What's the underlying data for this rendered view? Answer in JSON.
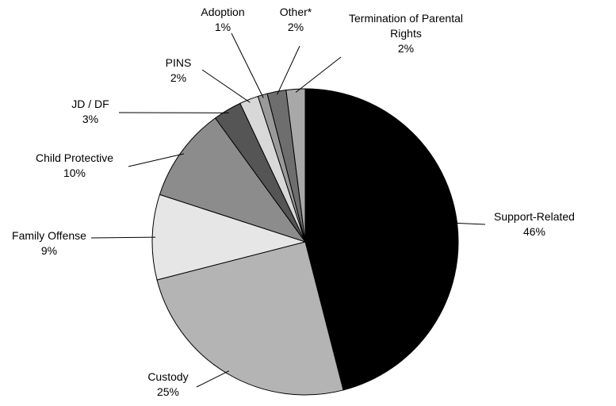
{
  "chart_data": {
    "type": "pie",
    "categories": [
      "Support-Related",
      "Custody",
      "Family Offense",
      "Child Protective",
      "JD / DF",
      "PINS",
      "Adoption",
      "Other*",
      "Termination of Parental Rights"
    ],
    "values": [
      46,
      25,
      9,
      10,
      3,
      2,
      1,
      2,
      2
    ],
    "value_labels": [
      "46%",
      "25%",
      "9%",
      "10%",
      "3%",
      "2%",
      "1%",
      "2%",
      "2%"
    ],
    "colors": [
      "#000000",
      "#b4b4b4",
      "#e6e6e6",
      "#8c8c8c",
      "#555555",
      "#d8d8d8",
      "#9a9a9a",
      "#6e6e6e",
      "#a8a8a8"
    ]
  }
}
